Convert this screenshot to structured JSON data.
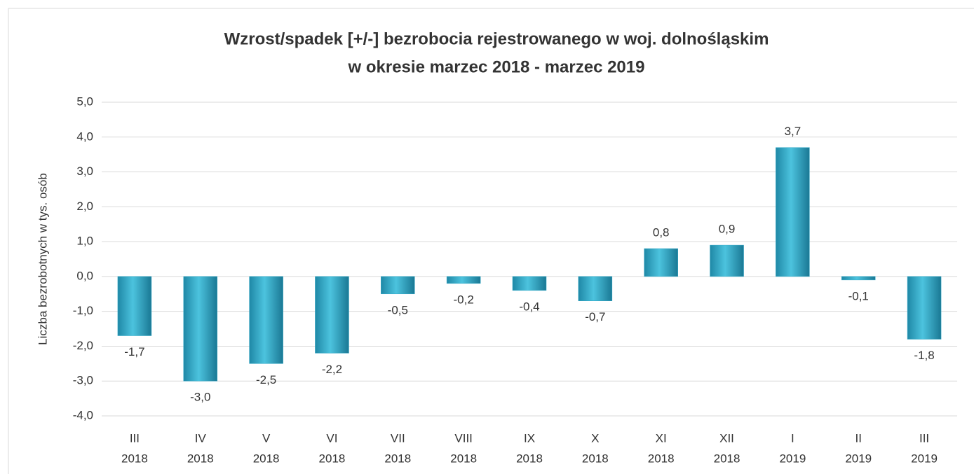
{
  "chart_data": {
    "type": "bar",
    "title": [
      "Wzrost/spadek [+/-] bezrobocia rejestrowanego w woj. dolnośląskim",
      "w okresie marzec 2018 - marzec 2019"
    ],
    "y_label": "Liczba bezrobotnych w tys. osób",
    "categories": [
      [
        "III",
        "2018"
      ],
      [
        "IV",
        "2018"
      ],
      [
        "V",
        "2018"
      ],
      [
        "VI",
        "2018"
      ],
      [
        "VII",
        "2018"
      ],
      [
        "VIII",
        "2018"
      ],
      [
        "IX",
        "2018"
      ],
      [
        "X",
        "2018"
      ],
      [
        "XI",
        "2018"
      ],
      [
        "XII",
        "2018"
      ],
      [
        "I",
        "2019"
      ],
      [
        "II",
        "2019"
      ],
      [
        "III",
        "2019"
      ]
    ],
    "values": [
      -1.7,
      -3.0,
      -2.5,
      -2.2,
      -0.5,
      -0.2,
      -0.4,
      -0.7,
      0.8,
      0.9,
      3.7,
      -0.1,
      -1.8
    ],
    "value_labels": [
      "-1,7",
      "-3,0",
      "-2,5",
      "-2,2",
      "-0,5",
      "-0,2",
      "-0,4",
      "-0,7",
      "0,8",
      "0,9",
      "3,7",
      "-0,1",
      "-1,8"
    ],
    "color": "#31a9c7",
    "ylim": [
      -4,
      5
    ],
    "yticks": [
      {
        "value": -4,
        "label": "-4,0"
      },
      {
        "value": -3,
        "label": "-3,0"
      },
      {
        "value": -2,
        "label": "-2,0"
      },
      {
        "value": -1,
        "label": "-1,0"
      },
      {
        "value": 0,
        "label": "0,0"
      },
      {
        "value": 1,
        "label": "1,0"
      },
      {
        "value": 2,
        "label": "2,0"
      },
      {
        "value": 3,
        "label": "3,0"
      },
      {
        "value": 4,
        "label": "4,0"
      },
      {
        "value": 5,
        "label": "5,0"
      }
    ],
    "grid": true
  }
}
